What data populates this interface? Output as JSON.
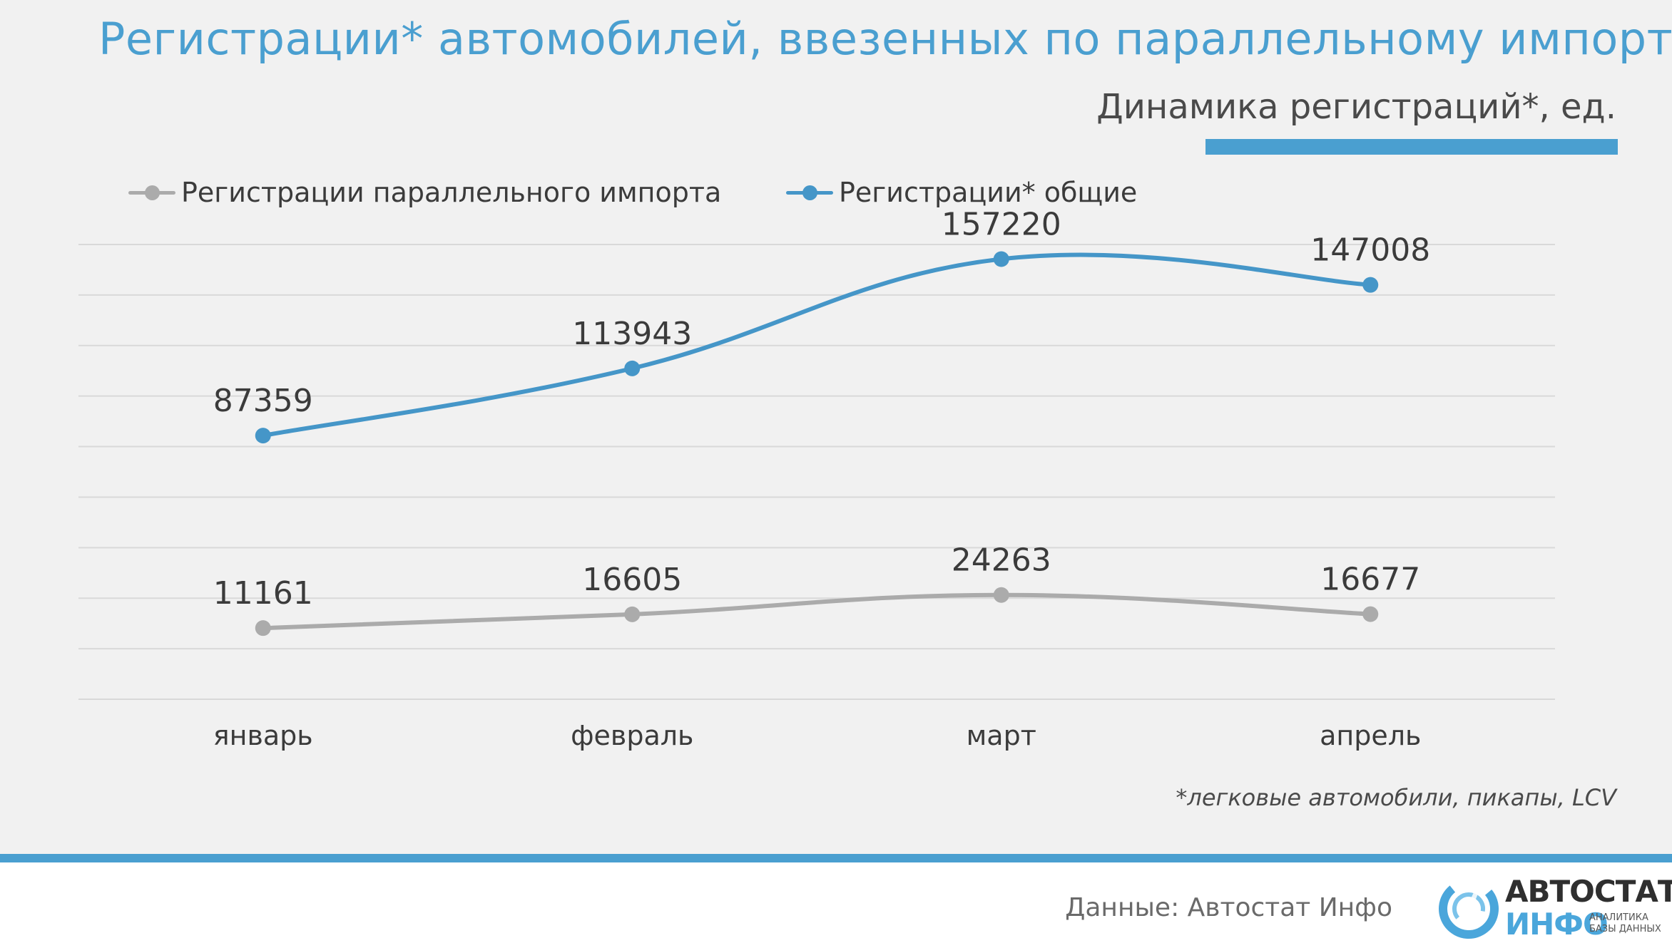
{
  "header": {
    "title": "Регистрации* автомобилей, ввезенных по параллельному импорту",
    "subtitle": "Динамика регистраций*, ед."
  },
  "colors": {
    "accent": "#4a9fd0",
    "series_total": "#4596c8",
    "series_parallel": "#ababab",
    "grid": "#d9d9d9",
    "label_text": "#3b3b3b"
  },
  "chart_data": {
    "type": "line",
    "title": "Динамика регистраций*, ед.",
    "categories": [
      "январь",
      "февраль",
      "март",
      "апрель"
    ],
    "series": [
      {
        "name": "Регистрации параллельного импорта",
        "values": [
          11161,
          16605,
          24263,
          16677
        ]
      },
      {
        "name": "Регистрации* общие",
        "values": [
          87359,
          113943,
          157220,
          147008
        ]
      }
    ],
    "ylim": [
      -17000,
      163000
    ],
    "gridline_step": 20000,
    "xlabel": "",
    "ylabel": "",
    "legend": "top-left",
    "grid": true,
    "smooth": true
  },
  "footnote": "*легковые автомобили, пикапы, LCV",
  "footer": {
    "source": "Данные: Автостат Инфо",
    "logo_top": "АВТОСТАТ",
    "logo_bottom": "ИНФО",
    "logo_tag_line1": "АНАЛИТИКА",
    "logo_tag_line2": "БАЗЫ ДАННЫХ"
  }
}
